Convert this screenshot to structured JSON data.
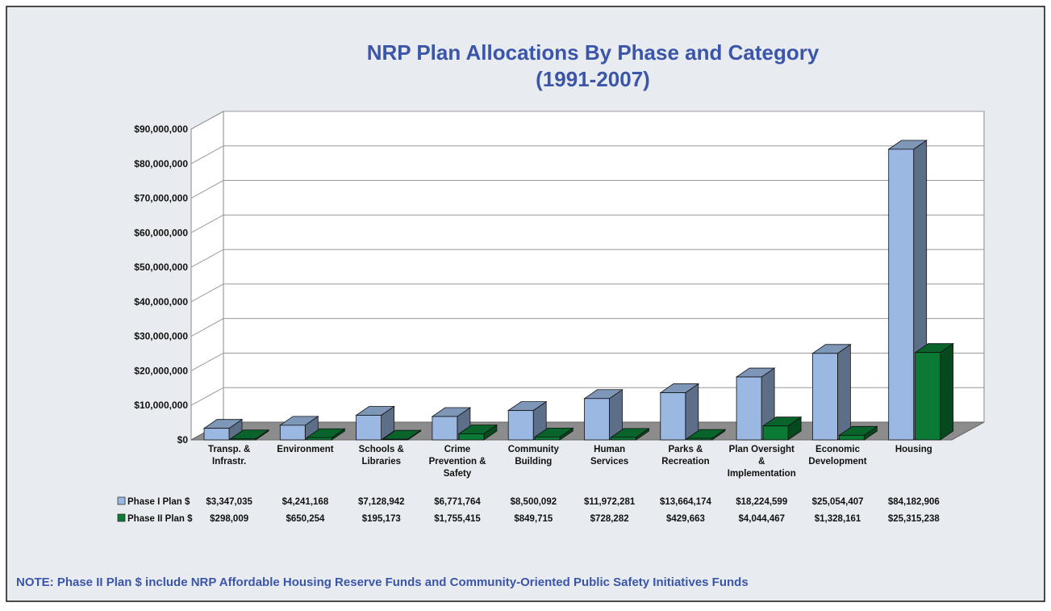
{
  "chart_data": {
    "type": "bar3d",
    "title": "NRP Plan Allocations By Phase and Category",
    "subtitle": "(1991-2007)",
    "categories": [
      "Transp. & Infrastr.",
      "Environment",
      "Schools & Libraries",
      "Crime Prevention & Safety",
      "Community Building",
      "Human Services",
      "Parks & Recreation",
      "Plan Oversight & Implementation",
      "Economic Development",
      "Housing"
    ],
    "series": [
      {
        "name": "Phase I Plan $",
        "color": "#9ab8e2",
        "values": [
          3347035,
          4241168,
          7128942,
          6771764,
          8500092,
          11972281,
          13664174,
          18224599,
          25054407,
          84182906
        ],
        "value_labels": [
          "$3,347,035",
          "$4,241,168",
          "$7,128,942",
          "$6,771,764",
          "$8,500,092",
          "$11,972,281",
          "$13,664,174",
          "$18,224,599",
          "$25,054,407",
          "$84,182,906"
        ]
      },
      {
        "name": "Phase II Plan $",
        "color": "#0a7a34",
        "values": [
          298009,
          650254,
          195173,
          1755415,
          849715,
          728282,
          429663,
          4044467,
          1328161,
          25315238
        ],
        "value_labels": [
          "$298,009",
          "$650,254",
          "$195,173",
          "$1,755,415",
          "$849,715",
          "$728,282",
          "$429,663",
          "$4,044,467",
          "$1,328,161",
          "$25,315,238"
        ]
      }
    ],
    "ylim": [
      0,
      90000000
    ],
    "yticks": [
      {
        "value": 0,
        "label": "$0"
      },
      {
        "value": 10000000,
        "label": "$10,000,000"
      },
      {
        "value": 20000000,
        "label": "$20,000,000"
      },
      {
        "value": 30000000,
        "label": "$30,000,000"
      },
      {
        "value": 40000000,
        "label": "$40,000,000"
      },
      {
        "value": 50000000,
        "label": "$50,000,000"
      },
      {
        "value": 60000000,
        "label": "$60,000,000"
      },
      {
        "value": 70000000,
        "label": "$70,000,000"
      },
      {
        "value": 80000000,
        "label": "$80,000,000"
      },
      {
        "value": 90000000,
        "label": "$90,000,000"
      }
    ],
    "grid": true,
    "note": "NOTE: Phase II Plan $ include NRP Affordable Housing Reserve Funds and Community-Oriented Public Safety Initiatives Funds"
  }
}
